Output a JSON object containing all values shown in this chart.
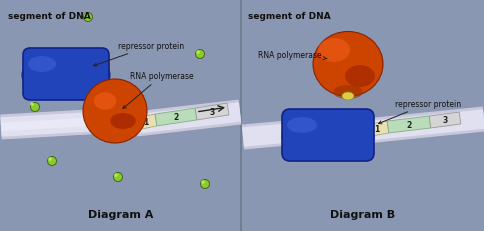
{
  "panel_bg": "#8b98b5",
  "panel_edge": "#6a7a8a",
  "dna_color": "#dddde8",
  "dna_shadow": "#b0b0c8",
  "seg1_color": "#e8e0b0",
  "seg2_color": "#b8ddb8",
  "seg3_color": "#d5d5d5",
  "repressor_color": "#2244bb",
  "repressor_dark": "#112288",
  "repressor_light": "#4466dd",
  "rna_pol_color": "#cc4400",
  "rna_pol_dark": "#882200",
  "rna_pol_light": "#ff6622",
  "mol_color": "#88cc33",
  "mol_dark": "#446611",
  "mol_bright": "#ccff55",
  "title_A": "Diagram A",
  "title_B": "Diagram B",
  "dna_label": "segment of DNA",
  "repressor_label": "repressor protein",
  "rna_label": "RNA polymerase",
  "panel_A_bg": "#8a97b2",
  "panel_B_bg": "#8a97b2"
}
